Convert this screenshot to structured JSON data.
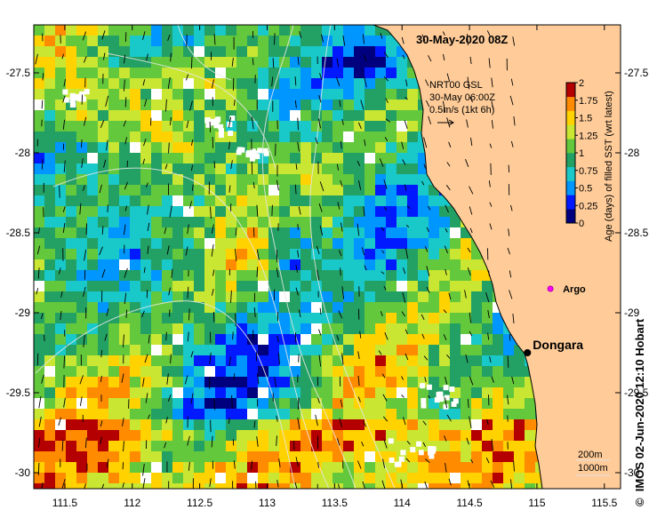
{
  "map": {
    "title": "30-May-2020 08Z",
    "current_legend": {
      "product": "NRT00 GSL",
      "timestamp": "30-May 06:00Z",
      "scale_text": "0.5m/s (1kt 6h)"
    },
    "colorbar": {
      "label": "Age (days) of filled SST (wrt latest)",
      "ticks": [
        "0",
        "0.25",
        "0.5",
        "0.75",
        "1",
        "1.25",
        "1.5",
        "1.75",
        "2"
      ],
      "colors": [
        "#00007f",
        "#0019ff",
        "#0096ff",
        "#19c8c8",
        "#23a064",
        "#64c83c",
        "#c8e632",
        "#ffd200",
        "#ff8c00",
        "#b40000"
      ]
    },
    "x_ticks": [
      "111.5",
      "112",
      "112.5",
      "113",
      "113.5",
      "114",
      "114.5",
      "115",
      "115.5"
    ],
    "y_ticks": [
      "-27.5",
      "-28",
      "-28.5",
      "-29",
      "-29.5",
      "-30"
    ],
    "extent": {
      "lon": [
        111.27,
        115.62
      ],
      "lat": [
        -27.2,
        -30.1
      ]
    },
    "places": [
      {
        "name": "Dongara",
        "lon": 114.93,
        "lat": -29.25
      },
      {
        "name": "Argo",
        "lon": 115.1,
        "lat": -28.85
      }
    ],
    "isobaths": [
      "200m",
      "1000m"
    ],
    "land_color": "#ffcc99",
    "credit": "IMOS 02-Jun-2020 12:10 Hobart"
  }
}
